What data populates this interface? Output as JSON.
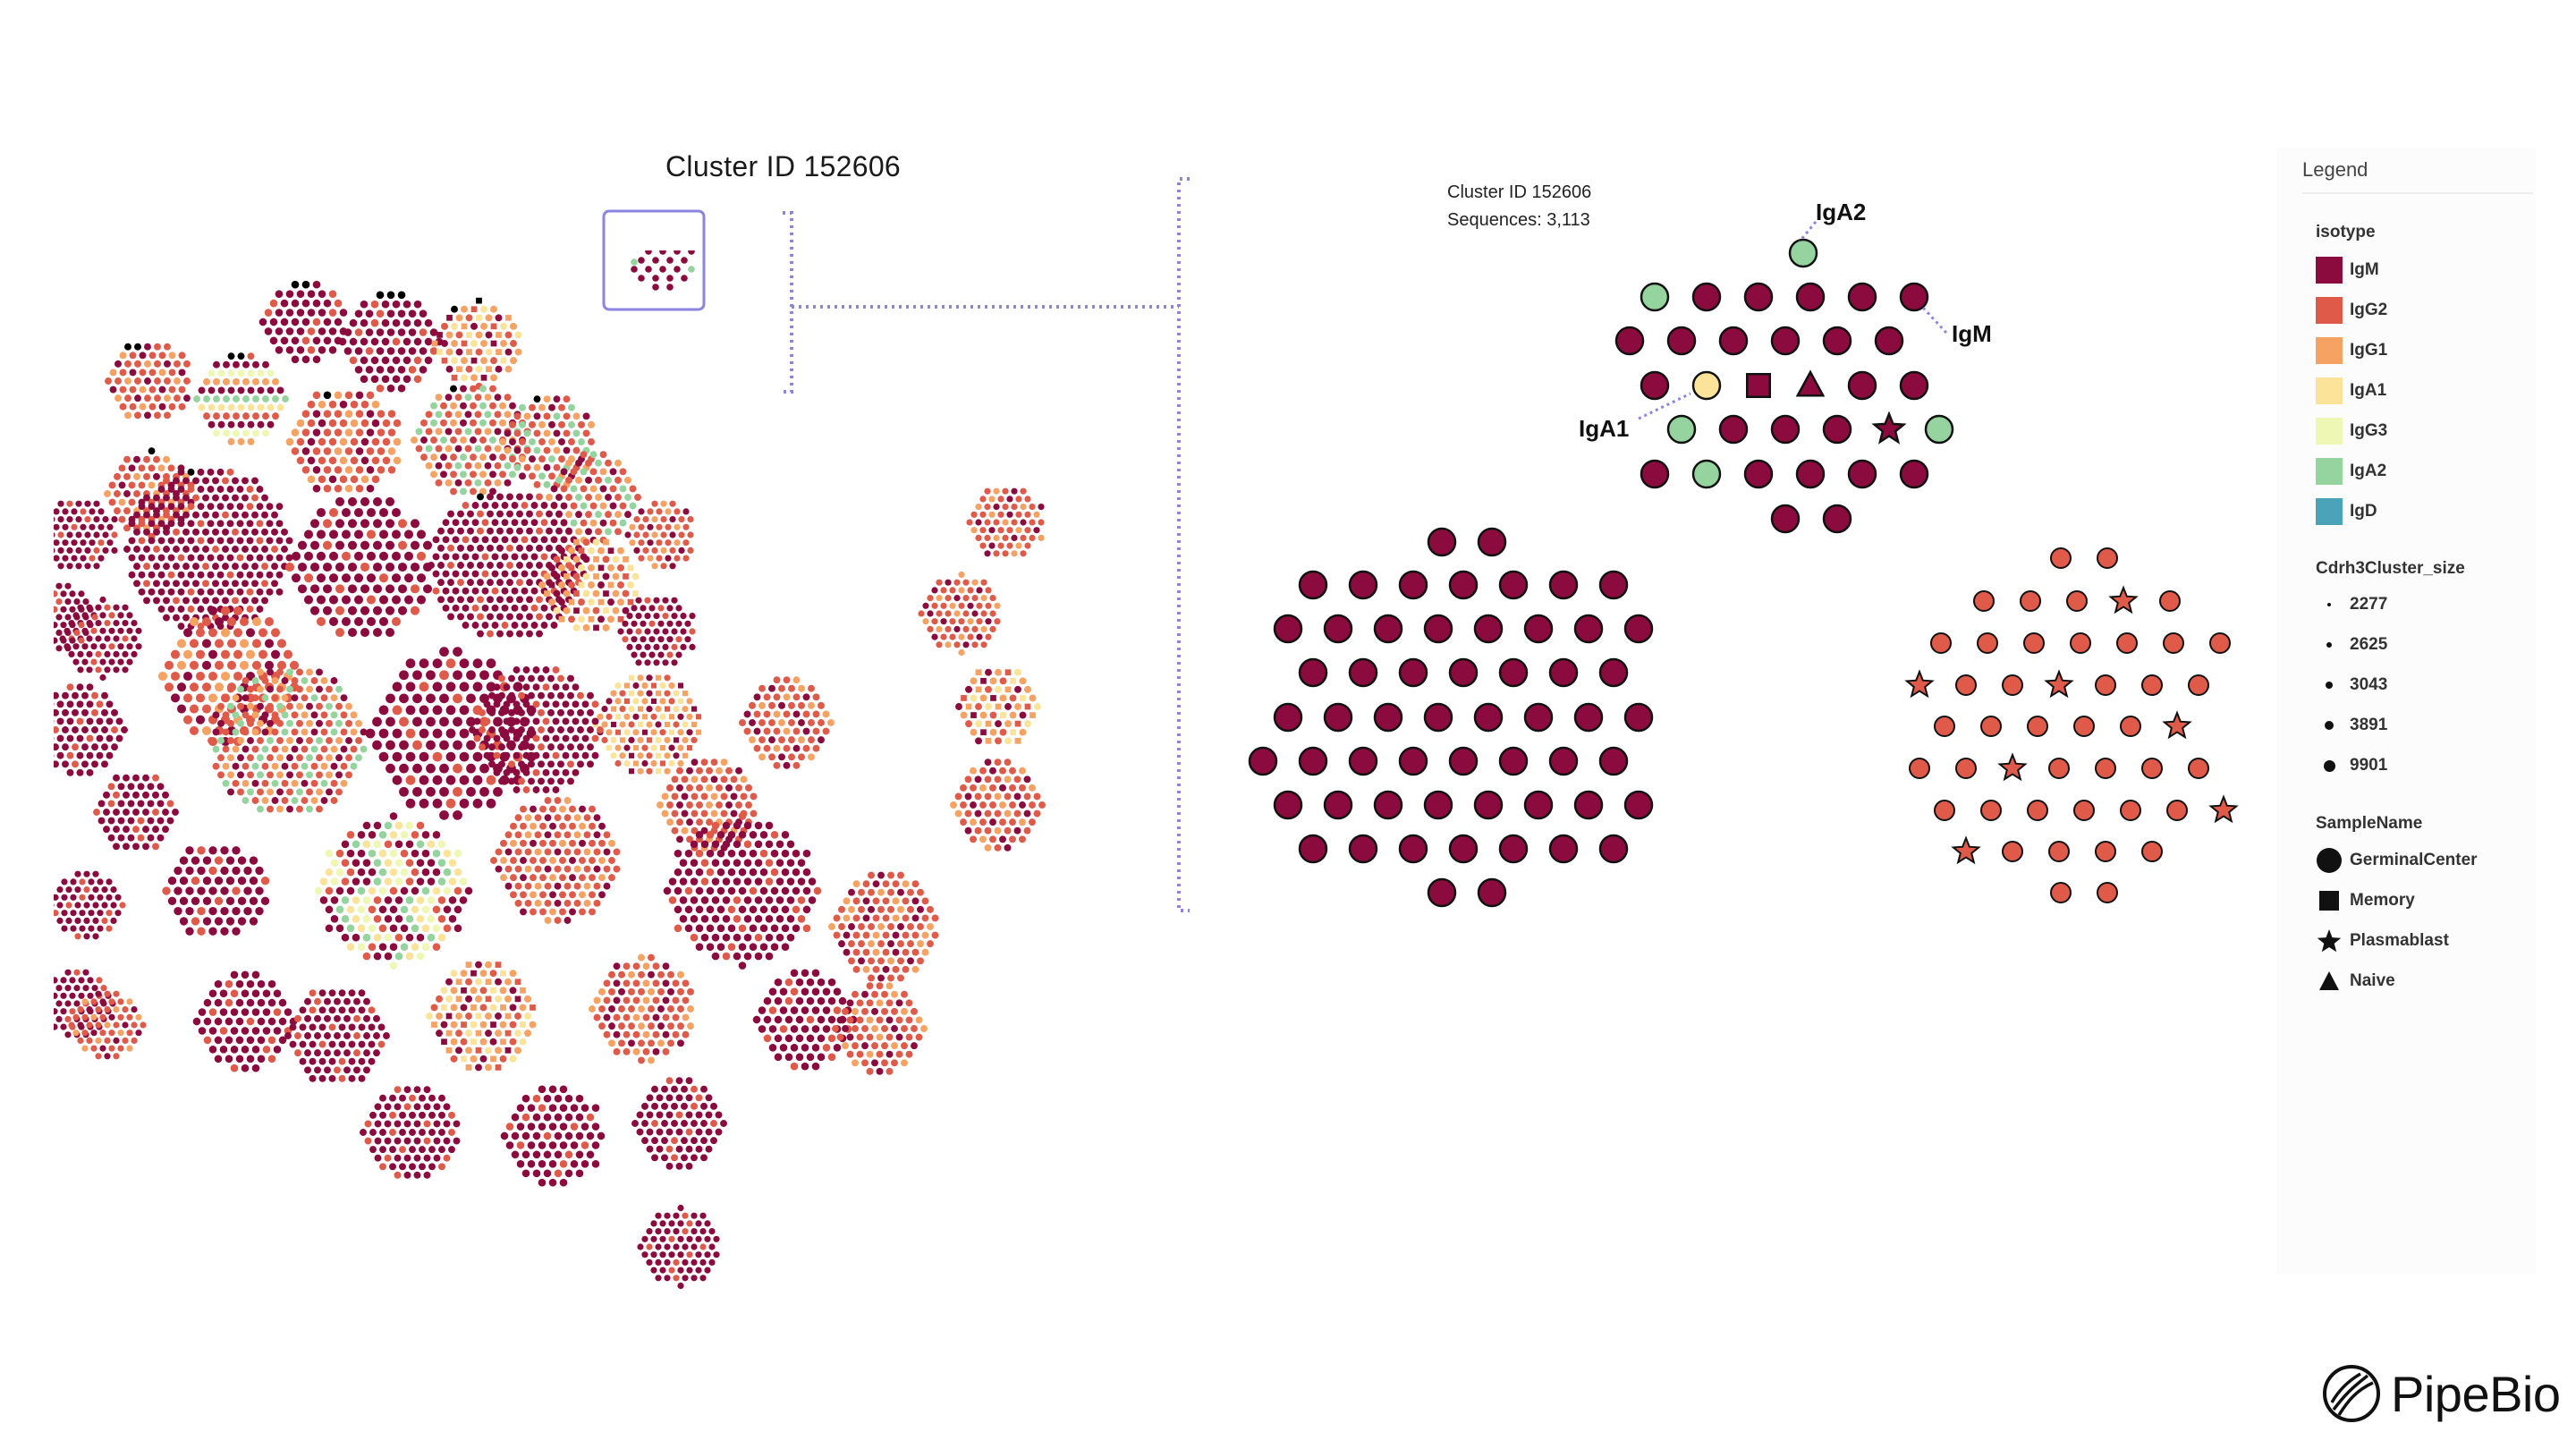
{
  "colors": {
    "IgM": "#8b0b3e",
    "IgG2": "#e05a4a",
    "IgG1": "#f6a263",
    "IgA1": "#fbe39a",
    "IgG3": "#eef7b4",
    "IgA2": "#95d39f",
    "IgD": "#4aa3b8",
    "accent": "#8b85e0",
    "outline": "#111111"
  },
  "overview": {
    "title": "Cluster ID 152606"
  },
  "zoom": {
    "cluster_line": "Cluster ID 152606",
    "sequences_line": "Sequences: 3,113",
    "labels": {
      "IgA2": "IgA2",
      "IgM": "IgM",
      "IgA1": "IgA1"
    }
  },
  "legend": {
    "title": "Legend",
    "isotype_heading": "isotype",
    "isotypes": [
      "IgM",
      "IgG2",
      "IgG1",
      "IgA1",
      "IgG3",
      "IgA2",
      "IgD"
    ],
    "size_heading": "Cdrh3Cluster_size",
    "sizes": [
      "2277",
      "2625",
      "3043",
      "3891",
      "9901"
    ],
    "sample_heading": "SampleName",
    "samples": [
      {
        "label": "GerminalCenter",
        "icon": "circle-icon"
      },
      {
        "label": "Memory",
        "icon": "square-icon"
      },
      {
        "label": "Plasmablast",
        "icon": "star-icon"
      },
      {
        "label": "Naive",
        "icon": "triangle-icon"
      }
    ]
  },
  "brand": {
    "name": "PipeBio",
    "icon": "pipebio-logo-icon"
  }
}
